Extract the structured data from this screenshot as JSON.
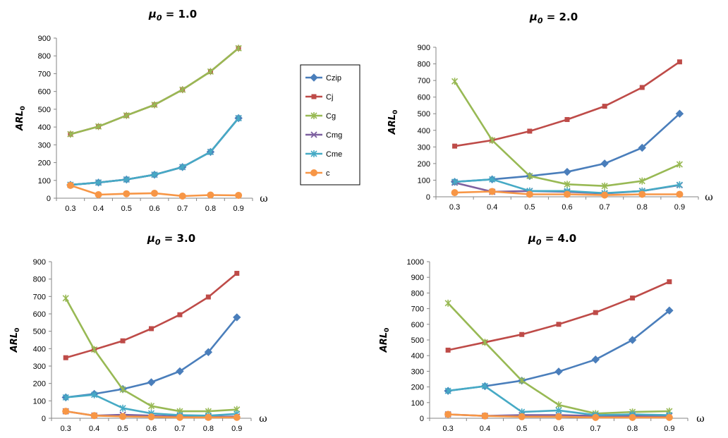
{
  "legend": {
    "entries": [
      {
        "name": "Czip",
        "color": "#4a7ebb",
        "marker": "diamond"
      },
      {
        "name": "Cj",
        "color": "#be4b48",
        "marker": "square"
      },
      {
        "name": "Cg",
        "color": "#98b954",
        "marker": "asterisk"
      },
      {
        "name": "Cmg",
        "color": "#7d60a0",
        "marker": "x"
      },
      {
        "name": "Cme",
        "color": "#46aac5",
        "marker": "asterisk"
      },
      {
        "name": "c",
        "color": "#f79646",
        "marker": "circle"
      }
    ]
  },
  "chart_data": [
    {
      "type": "line",
      "title": "μ0 = 1.0",
      "xlabel": "ω",
      "ylabel": "ARL0",
      "categories": [
        "0.3",
        "0.4",
        "0.5",
        "0.6",
        "0.7",
        "0.8",
        "0.9"
      ],
      "ylim": [
        0,
        900
      ],
      "yticks": [
        0,
        100,
        200,
        300,
        400,
        500,
        600,
        700,
        800,
        900
      ],
      "series": [
        {
          "name": "Czip",
          "values": [
            75,
            88,
            105,
            132,
            175,
            260,
            450
          ]
        },
        {
          "name": "Cj",
          "values": [
            360,
            403,
            465,
            525,
            610,
            712,
            843
          ]
        },
        {
          "name": "Cg",
          "values": [
            360,
            403,
            465,
            525,
            610,
            712,
            843
          ]
        },
        {
          "name": "Cmg",
          "values": [
            75,
            88,
            105,
            132,
            175,
            260,
            450
          ]
        },
        {
          "name": "Cme",
          "values": [
            75,
            88,
            105,
            132,
            175,
            260,
            450
          ]
        },
        {
          "name": "c",
          "values": [
            72,
            20,
            25,
            28,
            12,
            18,
            16
          ]
        }
      ]
    },
    {
      "type": "line",
      "title": "μ0 = 2.0",
      "xlabel": "ω",
      "ylabel": "ARL0",
      "categories": [
        "0.3",
        "0.4",
        "0.5",
        "0.6",
        "0.7",
        "0.8",
        "0.9"
      ],
      "ylim": [
        0,
        900
      ],
      "yticks": [
        0,
        100,
        200,
        300,
        400,
        500,
        600,
        700,
        800,
        900
      ],
      "series": [
        {
          "name": "Czip",
          "values": [
            90,
            105,
            125,
            150,
            200,
            295,
            500
          ]
        },
        {
          "name": "Cj",
          "values": [
            305,
            340,
            395,
            465,
            545,
            658,
            812
          ]
        },
        {
          "name": "Cg",
          "values": [
            695,
            340,
            125,
            75,
            65,
            95,
            195
          ]
        },
        {
          "name": "Cmg",
          "values": [
            85,
            30,
            35,
            30,
            20,
            35,
            70
          ]
        },
        {
          "name": "Cme",
          "values": [
            90,
            105,
            35,
            35,
            22,
            35,
            72
          ]
        },
        {
          "name": "c",
          "values": [
            25,
            32,
            15,
            15,
            10,
            15,
            15
          ]
        }
      ]
    },
    {
      "type": "line",
      "title": "μ0 = 3.0",
      "xlabel": "ω",
      "ylabel": "ARL0",
      "categories": [
        "0.3",
        "0.4",
        "0.5",
        "0.6",
        "0.7",
        "0.8",
        "0.9"
      ],
      "ylim": [
        0,
        900
      ],
      "yticks": [
        0,
        100,
        200,
        300,
        400,
        500,
        600,
        700,
        800,
        900
      ],
      "series": [
        {
          "name": "Czip",
          "values": [
            120,
            140,
            168,
            207,
            270,
            380,
            580
          ]
        },
        {
          "name": "Cj",
          "values": [
            348,
            395,
            445,
            515,
            595,
            697,
            833
          ]
        },
        {
          "name": "Cg",
          "values": [
            690,
            395,
            165,
            70,
            40,
            40,
            50
          ]
        },
        {
          "name": "Cmg",
          "values": [
            40,
            15,
            20,
            15,
            10,
            8,
            10
          ]
        },
        {
          "name": "Cme",
          "values": [
            120,
            135,
            58,
            28,
            18,
            15,
            25
          ]
        },
        {
          "name": "c",
          "values": [
            40,
            15,
            10,
            8,
            5,
            5,
            5
          ]
        }
      ]
    },
    {
      "type": "line",
      "title": "μ0 = 4.0",
      "xlabel": "ω",
      "ylabel": "ARL0",
      "categories": [
        "0.3",
        "0.4",
        "0.5",
        "0.6",
        "0.7",
        "0.8",
        "0.9"
      ],
      "ylim": [
        0,
        1000
      ],
      "yticks": [
        0,
        100,
        200,
        300,
        400,
        500,
        600,
        700,
        800,
        900,
        1000
      ],
      "series": [
        {
          "name": "Czip",
          "values": [
            175,
            205,
            240,
            298,
            375,
            500,
            688
          ]
        },
        {
          "name": "Cj",
          "values": [
            435,
            485,
            535,
            600,
            675,
            768,
            872
          ]
        },
        {
          "name": "Cg",
          "values": [
            735,
            485,
            240,
            85,
            30,
            40,
            45
          ]
        },
        {
          "name": "Cmg",
          "values": [
            25,
            15,
            20,
            20,
            15,
            15,
            15
          ]
        },
        {
          "name": "Cme",
          "values": [
            175,
            205,
            40,
            50,
            20,
            25,
            20
          ]
        },
        {
          "name": "c",
          "values": [
            25,
            15,
            10,
            10,
            5,
            5,
            5
          ]
        }
      ]
    }
  ]
}
